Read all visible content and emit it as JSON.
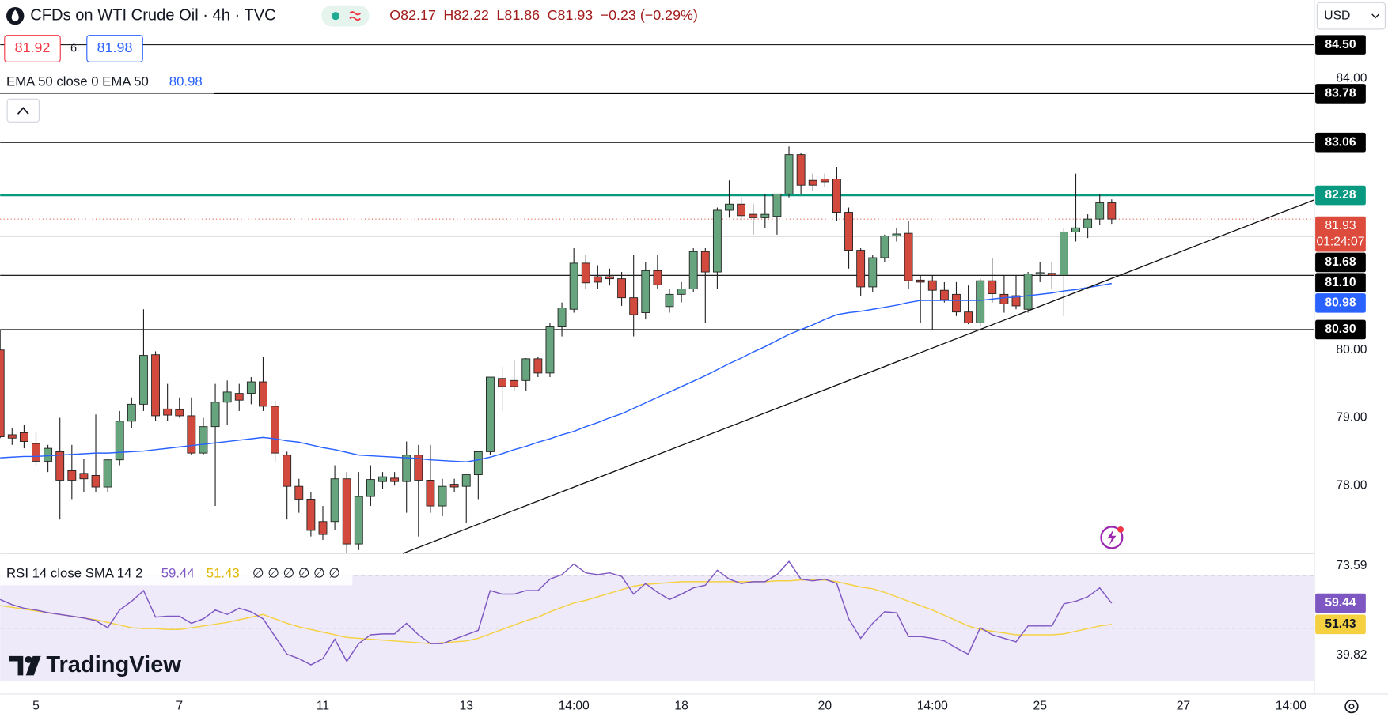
{
  "header": {
    "symbol": "CFDs on WTI Crude Oil · 4h · TVC",
    "ohlc": [
      "O82.17",
      "H82.22",
      "L81.86",
      "C81.93",
      "−0.23 (−0.29%)"
    ],
    "bid": 81.92,
    "spread": 6,
    "ask": 81.98,
    "ema_legend": "EMA 50 close 0 EMA 50",
    "currency": "USD",
    "logo": "TradingView"
  },
  "chart_data": [
    {
      "type": "candlestick",
      "up_color": "#66a57d",
      "down_color": "#d24a3e",
      "outline_color": "#222222",
      "xlim": [
        0,
        109.96
      ],
      "ylim": [
        77.0,
        85.16
      ],
      "yticks": [
        {
          "value": 84,
          "label": "84.00"
        },
        {
          "value": 80,
          "label": "80.00"
        },
        {
          "value": 79,
          "label": "79.00"
        },
        {
          "value": 78,
          "label": "78.00"
        }
      ],
      "xticks": [
        {
          "value": 3,
          "label": "5"
        },
        {
          "value": 15,
          "label": "7"
        },
        {
          "value": 27,
          "label": "11"
        },
        {
          "value": 39,
          "label": "13"
        },
        {
          "value": 48,
          "label": "14:00"
        },
        {
          "value": 57,
          "label": "18"
        },
        {
          "value": 69,
          "label": "20"
        },
        {
          "value": 78,
          "label": "14:00"
        },
        {
          "value": 87,
          "label": "25"
        },
        {
          "value": 99,
          "label": "27"
        },
        {
          "value": 108,
          "label": "14:00"
        }
      ],
      "levels": [
        {
          "value": 84.5,
          "label": "84.50",
          "color": "#000000"
        },
        {
          "value": 83.78,
          "color": "#000000"
        },
        {
          "value": 83.06,
          "color": "#000000"
        },
        {
          "value": 82.28,
          "color": "#089981"
        },
        {
          "value": 81.68,
          "color": "#000000"
        },
        {
          "value": 81.1,
          "label": "81.10",
          "color": "#000000"
        },
        {
          "value": 80.3,
          "label": "80.30",
          "color": "#000000"
        }
      ],
      "countdown": "01:24:07",
      "last_color": "#dc4b3c",
      "candles": [
        [
          80.0,
          80.3,
          78.7,
          78.72
        ],
        [
          78.75,
          78.85,
          78.6,
          78.7
        ],
        [
          78.78,
          78.9,
          78.55,
          78.65
        ],
        [
          78.62,
          78.8,
          78.3,
          78.36
        ],
        [
          78.36,
          78.6,
          78.2,
          78.55
        ],
        [
          78.5,
          79.0,
          77.5,
          78.08
        ],
        [
          78.22,
          78.6,
          77.8,
          78.08
        ],
        [
          78.18,
          78.4,
          77.9,
          78.1
        ],
        [
          78.15,
          79.05,
          77.9,
          77.98
        ],
        [
          77.98,
          78.4,
          77.9,
          78.38
        ],
        [
          78.38,
          79.1,
          78.3,
          78.95
        ],
        [
          78.95,
          79.3,
          78.85,
          79.2
        ],
        [
          79.2,
          80.6,
          79.1,
          79.92
        ],
        [
          79.93,
          79.98,
          78.95,
          79.03
        ],
        [
          79.13,
          79.5,
          78.95,
          79.04
        ],
        [
          79.12,
          79.3,
          79.0,
          79.03
        ],
        [
          79.03,
          79.3,
          78.45,
          78.48
        ],
        [
          78.48,
          79.0,
          78.45,
          78.87
        ],
        [
          78.87,
          79.5,
          77.7,
          79.23
        ],
        [
          79.23,
          79.55,
          78.9,
          79.38
        ],
        [
          79.36,
          79.5,
          79.1,
          79.26
        ],
        [
          79.36,
          79.6,
          79.2,
          79.53
        ],
        [
          79.53,
          79.9,
          79.1,
          79.17
        ],
        [
          79.17,
          79.25,
          78.35,
          78.48
        ],
        [
          78.45,
          78.5,
          77.5,
          77.99
        ],
        [
          77.99,
          78.1,
          77.6,
          77.8
        ],
        [
          77.8,
          77.9,
          77.25,
          77.34
        ],
        [
          77.47,
          77.7,
          77.2,
          77.28
        ],
        [
          77.47,
          78.3,
          77.35,
          78.1
        ],
        [
          78.1,
          78.2,
          77.0,
          77.14
        ],
        [
          77.14,
          78.2,
          77.05,
          77.84
        ],
        [
          77.84,
          78.3,
          77.7,
          78.09
        ],
        [
          78.06,
          78.2,
          77.95,
          78.13
        ],
        [
          78.11,
          78.2,
          78.0,
          78.06
        ],
        [
          78.06,
          78.65,
          77.6,
          78.45
        ],
        [
          78.45,
          78.6,
          77.25,
          78.08
        ],
        [
          78.08,
          78.6,
          77.6,
          77.7
        ],
        [
          77.7,
          78.1,
          77.55,
          77.99
        ],
        [
          78.02,
          78.1,
          77.9,
          77.98
        ],
        [
          77.99,
          78.15,
          77.45,
          78.16
        ],
        [
          78.16,
          78.5,
          77.8,
          78.5
        ],
        [
          78.5,
          79.6,
          78.45,
          79.6
        ],
        [
          79.58,
          79.75,
          79.1,
          79.46
        ],
        [
          79.55,
          79.85,
          79.4,
          79.46
        ],
        [
          79.55,
          79.88,
          79.4,
          79.87
        ],
        [
          79.87,
          79.9,
          79.6,
          79.66
        ],
        [
          79.66,
          80.4,
          79.6,
          80.34
        ],
        [
          80.34,
          80.7,
          80.2,
          80.62
        ],
        [
          80.6,
          81.5,
          80.55,
          81.28
        ],
        [
          81.28,
          81.4,
          80.9,
          80.99
        ],
        [
          81.08,
          81.25,
          80.9,
          81.0
        ],
        [
          81.08,
          81.2,
          80.95,
          81.05
        ],
        [
          81.05,
          81.15,
          80.65,
          80.77
        ],
        [
          80.77,
          81.4,
          80.2,
          80.52
        ],
        [
          80.55,
          81.3,
          80.45,
          81.17
        ],
        [
          81.17,
          81.4,
          80.9,
          80.96
        ],
        [
          80.64,
          80.9,
          80.55,
          80.82
        ],
        [
          80.82,
          81.0,
          80.7,
          80.9
        ],
        [
          80.9,
          81.5,
          80.85,
          81.45
        ],
        [
          81.45,
          81.5,
          80.4,
          81.15
        ],
        [
          81.15,
          82.1,
          80.9,
          82.06
        ],
        [
          82.06,
          82.5,
          81.95,
          82.15
        ],
        [
          82.15,
          82.25,
          81.9,
          81.98
        ],
        [
          82.0,
          82.15,
          81.7,
          81.95
        ],
        [
          81.95,
          82.3,
          81.8,
          82.0
        ],
        [
          81.97,
          82.3,
          81.7,
          82.3
        ],
        [
          82.3,
          83.0,
          82.25,
          82.88
        ],
        [
          82.88,
          82.9,
          82.3,
          82.43
        ],
        [
          82.5,
          82.6,
          82.35,
          82.43
        ],
        [
          82.52,
          82.6,
          82.4,
          82.48
        ],
        [
          82.52,
          82.7,
          81.9,
          82.03
        ],
        [
          82.03,
          82.1,
          81.2,
          81.47
        ],
        [
          81.47,
          81.5,
          80.8,
          80.93
        ],
        [
          80.93,
          81.4,
          80.85,
          81.36
        ],
        [
          81.36,
          81.7,
          81.3,
          81.68
        ],
        [
          81.68,
          81.8,
          81.6,
          81.71
        ],
        [
          81.72,
          81.9,
          80.9,
          81.02
        ],
        [
          81.03,
          81.1,
          80.4,
          81.0
        ],
        [
          81.02,
          81.1,
          80.3,
          80.88
        ],
        [
          80.88,
          81.0,
          80.7,
          80.74
        ],
        [
          80.82,
          81.0,
          80.5,
          80.56
        ],
        [
          80.56,
          80.95,
          80.38,
          80.4
        ],
        [
          80.4,
          81.05,
          80.35,
          81.02
        ],
        [
          81.02,
          81.35,
          80.7,
          80.83
        ],
        [
          80.82,
          81.1,
          80.55,
          80.68
        ],
        [
          80.8,
          81.1,
          80.6,
          80.65
        ],
        [
          80.6,
          81.15,
          80.55,
          81.12
        ],
        [
          81.12,
          81.3,
          81.0,
          81.14
        ],
        [
          81.13,
          81.3,
          80.9,
          81.1
        ],
        [
          81.1,
          81.8,
          80.5,
          81.74
        ],
        [
          81.74,
          82.6,
          81.6,
          81.8
        ],
        [
          81.8,
          82.0,
          81.65,
          81.93
        ],
        [
          81.93,
          82.3,
          81.85,
          82.17
        ],
        [
          82.17,
          82.22,
          81.86,
          81.93
        ]
      ],
      "series": [
        {
          "color": "#2962ff",
          "values": [
            78.41,
            78.42,
            78.43,
            78.43,
            78.44,
            78.45,
            78.46,
            78.47,
            78.48,
            78.48,
            78.49,
            78.5,
            78.51,
            78.53,
            78.55,
            78.57,
            78.59,
            78.61,
            78.63,
            78.65,
            78.67,
            78.69,
            78.71,
            78.69,
            78.66,
            78.64,
            78.6,
            78.56,
            78.53,
            78.49,
            78.45,
            78.44,
            78.43,
            78.42,
            78.41,
            78.4,
            78.38,
            78.37,
            78.36,
            78.35,
            78.38,
            78.42,
            78.47,
            78.53,
            78.58,
            78.64,
            78.69,
            78.75,
            78.8,
            78.87,
            78.93,
            79.0,
            79.06,
            79.14,
            79.22,
            79.3,
            79.38,
            79.46,
            79.54,
            79.62,
            79.71,
            79.8,
            79.88,
            79.97,
            80.05,
            80.14,
            80.23,
            80.3,
            80.37,
            80.45,
            80.52,
            80.55,
            80.57,
            80.6,
            80.63,
            80.66,
            80.7,
            80.73,
            80.73,
            80.73,
            80.73,
            80.73,
            80.73,
            80.75,
            80.77,
            80.78,
            80.8,
            80.82,
            80.84,
            80.87,
            80.89,
            80.92,
            80.95,
            80.98
          ]
        }
      ]
    },
    {
      "type": "line",
      "title": "RSI 14 close SMA 14 2",
      "extras": "∅ ∅ ∅ ∅ ∅ ∅",
      "xlim": [
        0,
        109.96
      ],
      "ylim": [
        25.1,
        78.27
      ],
      "yticks": [
        73.59,
        39.82
      ],
      "bands": [
        70,
        50,
        30
      ],
      "band_fill": "#eeeafa",
      "series": [
        {
          "color": "#7e57c2",
          "values": [
            60.88,
            58.88,
            57.54,
            56.87,
            55.87,
            55.2,
            54.53,
            53.86,
            52.86,
            50.18,
            56.87,
            60.21,
            64.23,
            54.19,
            54.53,
            54.53,
            51.85,
            53.53,
            56.87,
            55.2,
            57.54,
            56.2,
            53.53,
            46.84,
            40.15,
            38.48,
            36.14,
            38.48,
            45.83,
            37.47,
            44.16,
            47.51,
            47.84,
            47.84,
            51.85,
            47.51,
            44.16,
            44.16,
            45.83,
            47.51,
            49.18,
            64.23,
            62.89,
            62.89,
            64.23,
            64.23,
            68.57,
            70.25,
            74.26,
            70.92,
            70.25,
            70.92,
            69.58,
            62.89,
            66.9,
            63.56,
            60.88,
            62.89,
            65.23,
            66.23,
            71.92,
            68.57,
            66.9,
            67.57,
            67.57,
            70.25,
            75.26,
            68.57,
            67.9,
            68.57,
            66.9,
            53.53,
            46.17,
            51.85,
            56.2,
            55.87,
            46.84,
            46.84,
            46.17,
            45.17,
            42.49,
            40.15,
            50.18,
            47.51,
            46.17,
            44.83,
            50.85,
            50.85,
            50.85,
            59.21,
            60.21,
            61.89,
            65.23,
            59.44
          ]
        },
        {
          "color": "#f5d142",
          "values": [
            58.54,
            57.87,
            57.2,
            56.53,
            55.87,
            55.2,
            54.53,
            53.86,
            53.19,
            52.19,
            51.18,
            50.18,
            49.85,
            49.85,
            49.51,
            49.51,
            50.18,
            50.85,
            51.52,
            52.19,
            53.19,
            54.19,
            55.2,
            53.53,
            51.85,
            50.51,
            49.51,
            48.51,
            47.51,
            46.5,
            46.17,
            45.83,
            45.5,
            45.17,
            44.83,
            44.5,
            44.16,
            44.5,
            44.83,
            45.17,
            46.17,
            47.84,
            49.51,
            51.18,
            52.86,
            54.19,
            56.2,
            57.87,
            59.54,
            60.55,
            61.89,
            63.22,
            64.56,
            65.9,
            66.57,
            66.9,
            67.24,
            67.57,
            67.57,
            67.57,
            67.57,
            67.57,
            67.57,
            67.57,
            67.57,
            67.9,
            67.9,
            68.24,
            68.24,
            68.24,
            67.57,
            66.57,
            65.56,
            64.9,
            63.56,
            61.89,
            60.21,
            58.54,
            56.87,
            54.86,
            52.86,
            50.85,
            49.51,
            48.84,
            48.18,
            47.51,
            47.51,
            47.51,
            47.51,
            47.84,
            48.84,
            49.85,
            50.85,
            51.43
          ]
        }
      ]
    }
  ]
}
